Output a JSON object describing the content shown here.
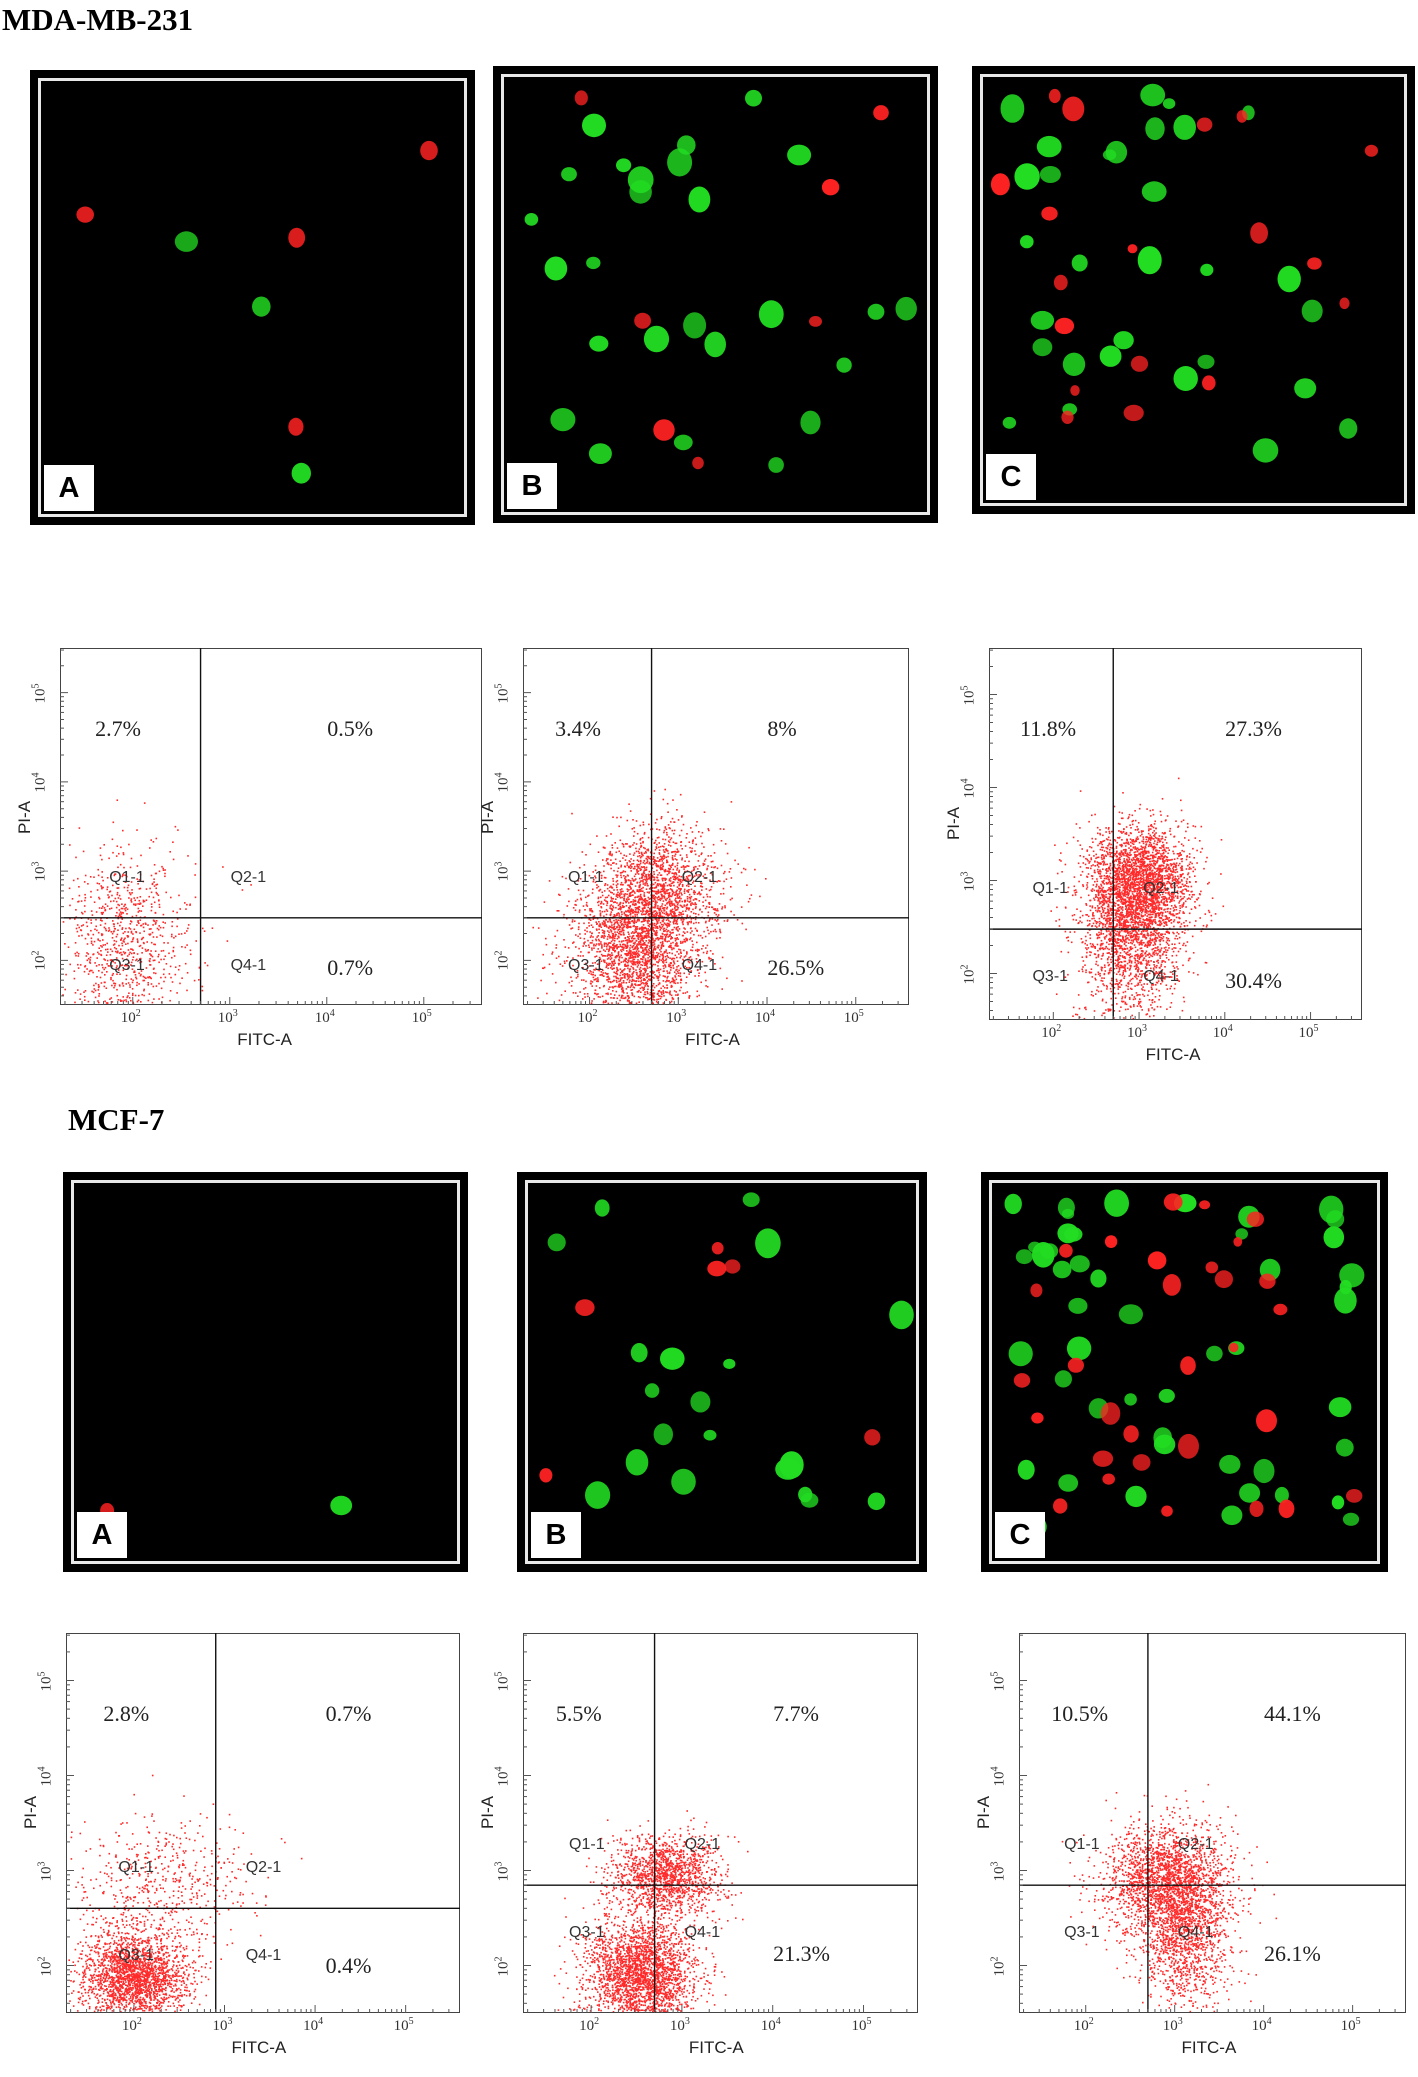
{
  "sections": [
    {
      "id": "mda",
      "title": "MDA-MB-231"
    },
    {
      "id": "mcf",
      "title": "MCF-7"
    }
  ],
  "micrographs": [
    {
      "id": "mda-A",
      "label": "A",
      "green_cells": 3,
      "red_cells": 4
    },
    {
      "id": "mda-B",
      "label": "B",
      "green_cells": 26,
      "red_cells": 7
    },
    {
      "id": "mda-C",
      "label": "C",
      "green_cells": 30,
      "red_cells": 18
    },
    {
      "id": "mcf-A",
      "label": "A",
      "green_cells": 1,
      "red_cells": 1
    },
    {
      "id": "mcf-B",
      "label": "B",
      "green_cells": 20,
      "red_cells": 6
    },
    {
      "id": "mcf-C",
      "label": "C",
      "green_cells": 48,
      "red_cells": 30
    }
  ],
  "colors": {
    "dots": "#ff2a2a",
    "green_cell": "#22dd22",
    "red_cell": "#ff2222",
    "panel_bg": "#000000"
  },
  "chart_data": [
    {
      "id": "mda-1",
      "type": "scatter",
      "xlabel": "FITC-A",
      "ylabel": "PI-A",
      "xscale": "log",
      "yscale": "log",
      "ticks_x": [
        "10",
        "10",
        "10",
        "10"
      ],
      "tick_exp_x": [
        "2",
        "3",
        "4",
        "5"
      ],
      "ticks_y": [
        "10",
        "10",
        "10",
        "10"
      ],
      "tick_exp_y": [
        "2",
        "3",
        "4",
        "5"
      ],
      "quadrant_labels": [
        "Q1-1",
        "Q2-1",
        "Q3-1",
        "Q4-1"
      ],
      "percentages": {
        "Q1": "2.7%",
        "Q2": "0.5%",
        "Q3": "",
        "Q4": "0.7%"
      },
      "gate_x": 500,
      "gate_y": 300,
      "upper_gate_line": false
    },
    {
      "id": "mda-2",
      "type": "scatter",
      "xlabel": "FITC-A",
      "ylabel": "PI-A",
      "xscale": "log",
      "yscale": "log",
      "ticks_x": [
        "10",
        "10",
        "10",
        "10"
      ],
      "tick_exp_x": [
        "2",
        "3",
        "4",
        "5"
      ],
      "ticks_y": [
        "10",
        "10",
        "10",
        "10"
      ],
      "tick_exp_y": [
        "2",
        "3",
        "4",
        "5"
      ],
      "quadrant_labels": [
        "Q1-1",
        "Q2-1",
        "Q3-1",
        "Q4-1"
      ],
      "percentages": {
        "Q1": "3.4%",
        "Q2": "8%",
        "Q3": "",
        "Q4": "26.5%"
      },
      "gate_x": 500,
      "gate_y": 300,
      "upper_gate_line": true
    },
    {
      "id": "mda-3",
      "type": "scatter",
      "xlabel": "FITC-A",
      "ylabel": "PI-A",
      "xscale": "log",
      "yscale": "log",
      "ticks_x": [
        "10",
        "10",
        "10",
        "10"
      ],
      "tick_exp_x": [
        "2",
        "3",
        "4",
        "5"
      ],
      "ticks_y": [
        "10",
        "10",
        "10",
        "10"
      ],
      "tick_exp_y": [
        "2",
        "3",
        "4",
        "5"
      ],
      "quadrant_labels": [
        "Q1-1",
        "Q2-1",
        "Q3-1",
        "Q4-1"
      ],
      "percentages": {
        "Q1": "11.8%",
        "Q2": "27.3%",
        "Q3": "",
        "Q4": "30.4%"
      },
      "gate_x": 500,
      "gate_y": 300,
      "upper_gate_line": true
    },
    {
      "id": "mcf-1",
      "type": "scatter",
      "xlabel": "FITC-A",
      "ylabel": "PI-A",
      "xscale": "log",
      "yscale": "log",
      "ticks_x": [
        "10",
        "10",
        "10",
        "10"
      ],
      "tick_exp_x": [
        "2",
        "3",
        "4",
        "5"
      ],
      "ticks_y": [
        "10",
        "10",
        "10",
        "10"
      ],
      "tick_exp_y": [
        "2",
        "3",
        "4",
        "5"
      ],
      "quadrant_labels": [
        "Q1-1",
        "Q2-1",
        "Q3-1",
        "Q4-1"
      ],
      "percentages": {
        "Q1": "2.8%",
        "Q2": "0.7%",
        "Q3": "",
        "Q4": "0.4%"
      },
      "gate_x": 800,
      "gate_y": 400,
      "upper_gate_line": true
    },
    {
      "id": "mcf-2",
      "type": "scatter",
      "xlabel": "FITC-A",
      "ylabel": "PI-A",
      "xscale": "log",
      "yscale": "log",
      "ticks_x": [
        "10",
        "10",
        "10",
        "10"
      ],
      "tick_exp_x": [
        "2",
        "3",
        "4",
        "5"
      ],
      "ticks_y": [
        "10",
        "10",
        "10",
        "10"
      ],
      "tick_exp_y": [
        "2",
        "3",
        "4",
        "5"
      ],
      "quadrant_labels": [
        "Q1-1",
        "Q2-1",
        "Q3-1",
        "Q4-1"
      ],
      "percentages": {
        "Q1": "5.5%",
        "Q2": "7.7%",
        "Q3": "",
        "Q4": "21.3%"
      },
      "gate_x": 500,
      "gate_y": 700,
      "upper_gate_line": true
    },
    {
      "id": "mcf-3",
      "type": "scatter",
      "xlabel": "FITC-A",
      "ylabel": "PI-A",
      "xscale": "log",
      "yscale": "log",
      "ticks_x": [
        "10",
        "10",
        "10",
        "10"
      ],
      "tick_exp_x": [
        "2",
        "3",
        "4",
        "5"
      ],
      "ticks_y": [
        "10",
        "10",
        "10",
        "10"
      ],
      "tick_exp_y": [
        "2",
        "3",
        "4",
        "5"
      ],
      "quadrant_labels": [
        "Q1-1",
        "Q2-1",
        "Q3-1",
        "Q4-1"
      ],
      "percentages": {
        "Q1": "10.5%",
        "Q2": "44.1%",
        "Q3": "",
        "Q4": "26.1%"
      },
      "gate_x": 500,
      "gate_y": 700,
      "upper_gate_line": true
    }
  ]
}
